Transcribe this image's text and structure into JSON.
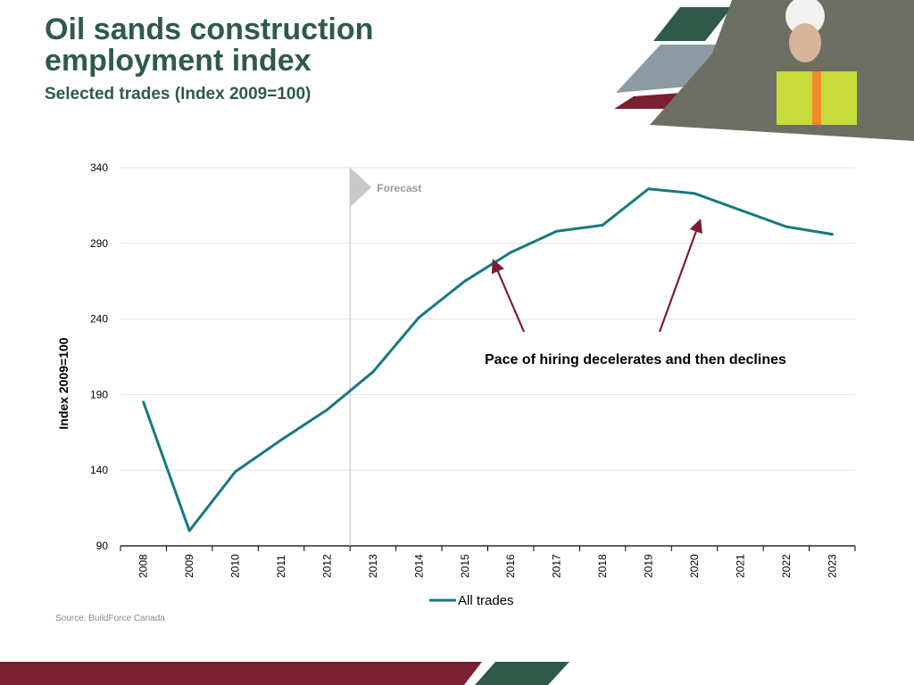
{
  "slide": {
    "title_lines": [
      "Oil sands construction",
      "employment index"
    ],
    "subtitle": "Selected trades (Index 2009=100)",
    "source": "Source: BuildForce Canada"
  },
  "colors": {
    "title": "#2f5a4a",
    "series_line": "#16797f",
    "annotation_arrow": "#7a1f30",
    "forecast_marker": "#c8c8c8",
    "brand_dark_green": "#2f5a4a",
    "brand_maroon": "#7a1f30"
  },
  "chart_data": {
    "type": "line",
    "x": [
      "2008",
      "2009",
      "2010",
      "2011",
      "2012",
      "2013",
      "2014",
      "2015",
      "2016",
      "2017",
      "2018",
      "2019",
      "2020",
      "2021",
      "2022",
      "2023"
    ],
    "series": [
      {
        "name": "All trades",
        "values": [
          185,
          100,
          139,
          160,
          180,
          205,
          241,
          265,
          284,
          298,
          302,
          326,
          323,
          312,
          301,
          296
        ]
      }
    ],
    "ylabel": "Index 2009=100",
    "xlabel": "",
    "ylim": [
      90,
      340
    ],
    "yticks": [
      90,
      140,
      190,
      240,
      290,
      340
    ],
    "grid": true,
    "legend": "bottom",
    "forecast_label": "Forecast",
    "annotation": "Pace of hiring decelerates and then declines"
  }
}
